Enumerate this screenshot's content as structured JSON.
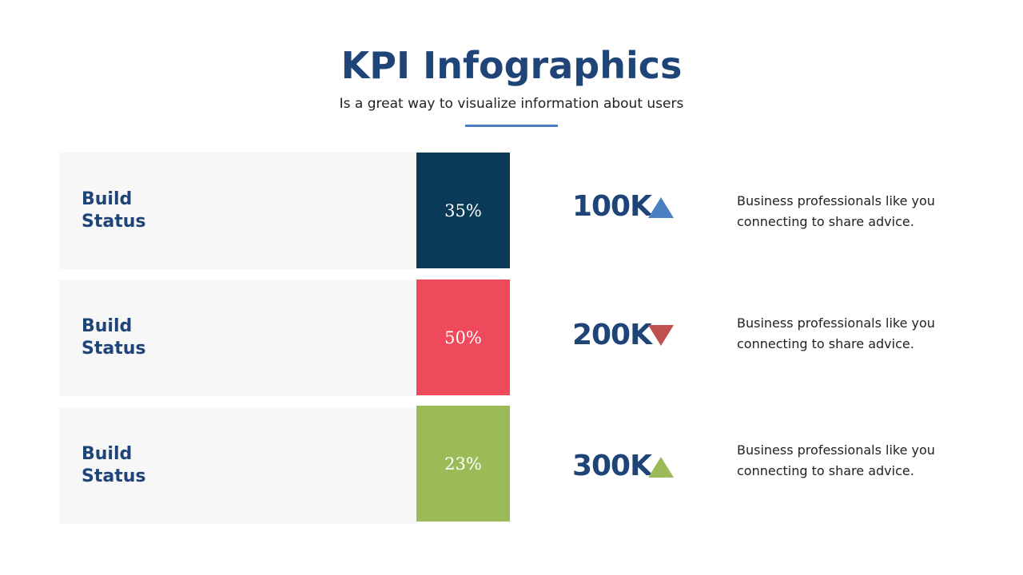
{
  "header": {
    "title": "KPI Infographics",
    "subtitle": "Is a great way to visualize information about users"
  },
  "rows": [
    {
      "label_line1": "Build",
      "label_line2": "Status",
      "percent_text": "35%",
      "percent_value": 35,
      "box_color": "#093b58",
      "kpi_value": "100K",
      "trend": "up",
      "trend_icon": "triangle-up-icon",
      "trend_color": "#4a7fc1",
      "description_line1": "Business professionals like you",
      "description_line2": "connecting to share advice."
    },
    {
      "label_line1": "Build",
      "label_line2": "Status",
      "percent_text": "50%",
      "percent_value": 50,
      "box_color": "#ee4a5c",
      "kpi_value": "200K",
      "trend": "down",
      "trend_icon": "triangle-down-icon",
      "trend_color": "#c0504d",
      "description_line1": "Business professionals like you",
      "description_line2": "connecting to share advice."
    },
    {
      "label_line1": "Build",
      "label_line2": "Status",
      "percent_text": "23%",
      "percent_value": 23,
      "box_color": "#9bbb59",
      "kpi_value": "300K",
      "trend": "up",
      "trend_icon": "triangle-up-icon",
      "trend_color": "#9bbb59",
      "description_line1": "Business professionals like you",
      "description_line2": "connecting to share advice."
    }
  ],
  "colors": {
    "title": "#1f4478",
    "accent_rule": "#4a7fc1",
    "panel_background": "#f7f7f7"
  }
}
